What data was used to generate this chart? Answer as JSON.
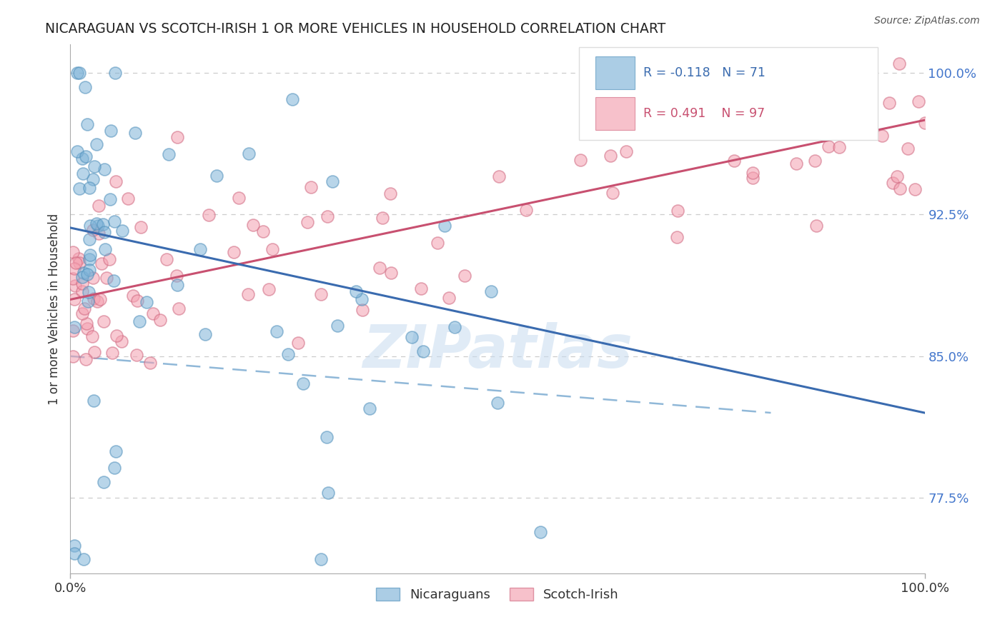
{
  "title": "NICARAGUAN VS SCOTCH-IRISH 1 OR MORE VEHICLES IN HOUSEHOLD CORRELATION CHART",
  "source_text": "Source: ZipAtlas.com",
  "ylabel": "1 or more Vehicles in Household",
  "ytick_positions": [
    0.775,
    0.85,
    0.925,
    1.0
  ],
  "ytick_labels": [
    "77.5%",
    "85.0%",
    "92.5%",
    "100.0%"
  ],
  "ylim": [
    0.735,
    1.015
  ],
  "xlim": [
    0.0,
    1.0
  ],
  "blue_color": "#7EB3D8",
  "pink_color": "#F4A0B0",
  "blue_edge_color": "#5090BB",
  "pink_edge_color": "#D06880",
  "blue_trend_color": "#3A6BAF",
  "pink_trend_color": "#C85070",
  "dashed_line_color": "#90B8D8",
  "legend_R_blue": "R = -0.118",
  "legend_N_blue": "N = 71",
  "legend_R_pink": "R = 0.491",
  "legend_N_pink": "N = 97",
  "legend_label_blue": "Nicaraguans",
  "legend_label_pink": "Scotch-Irish",
  "blue_trend_x": [
    0.0,
    1.0
  ],
  "blue_trend_y": [
    0.918,
    0.82
  ],
  "pink_trend_x": [
    0.0,
    1.0
  ],
  "pink_trend_y": [
    0.88,
    0.975
  ],
  "dashed_trend_x": [
    0.0,
    0.82
  ],
  "dashed_trend_y": [
    0.85,
    0.82
  ],
  "watermark_text": "ZIPatlas",
  "grid_color": "#CCCCCC",
  "right_tick_color": "#4477CC",
  "title_color": "#222222",
  "source_color": "#555555"
}
